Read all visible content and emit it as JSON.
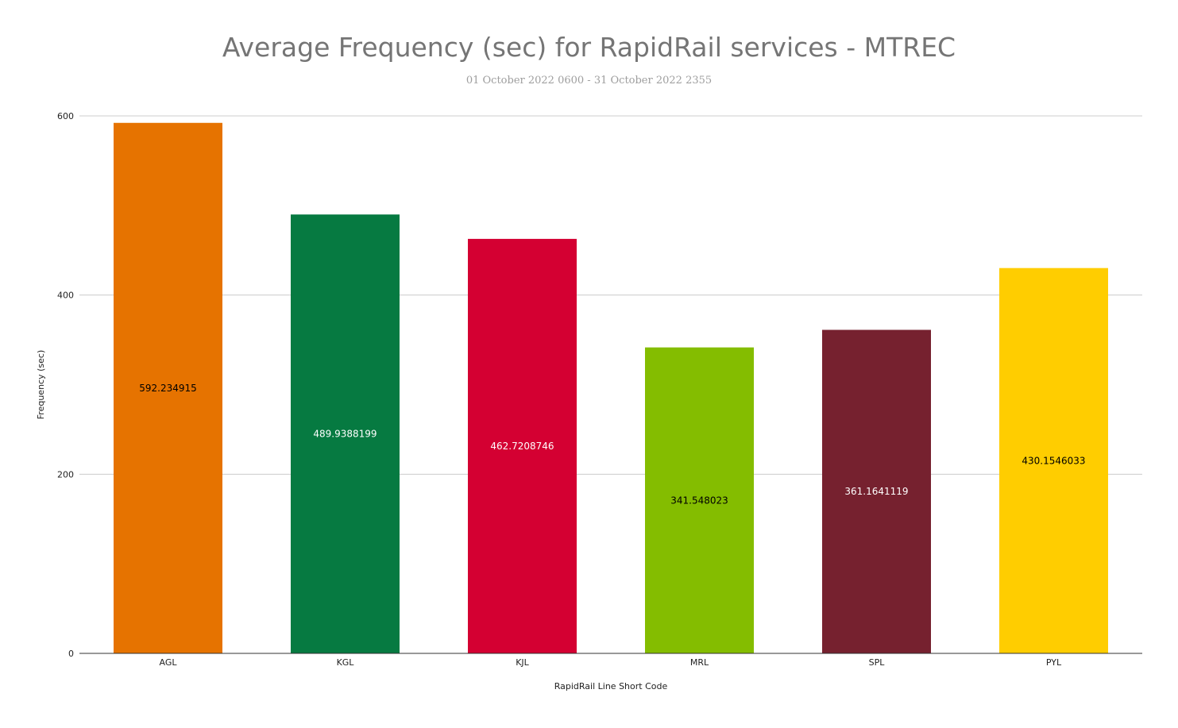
{
  "chart_data": {
    "type": "bar",
    "title": "Average Frequency (sec) for RapidRail services - MTREC",
    "subtitle": "01 October 2022 0600 - 31 October 2022 2355",
    "xlabel": "RapidRail Line Short Code",
    "ylabel": "Frequency (sec)",
    "ylim": [
      0,
      600
    ],
    "yticks": [
      0,
      200,
      400,
      600
    ],
    "grid": true,
    "legend": "none",
    "categories": [
      "AGL",
      "KGL",
      "KJL",
      "MRL",
      "SPL",
      "PYL"
    ],
    "values": [
      592.234915,
      489.9388199,
      462.7208746,
      341.548023,
      361.1641119,
      430.1546033
    ],
    "data_labels": [
      "592.234915",
      "489.9388199",
      "462.7208746",
      "341.548023",
      "361.1641119",
      "430.1546033"
    ],
    "colors": [
      "#e67300",
      "#067a41",
      "#d40032",
      "#84bd00",
      "#76212f",
      "#ffcd00"
    ],
    "label_colors": [
      "#000000",
      "#ffffff",
      "#ffffff",
      "#000000",
      "#ffffff",
      "#000000"
    ]
  }
}
